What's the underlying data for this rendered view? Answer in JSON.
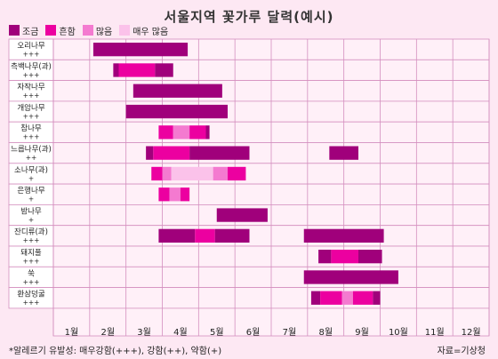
{
  "chart_data": {
    "type": "bar",
    "title": "서울지역 꽃가루 달력(예시)",
    "legend": [
      {
        "label": "조금",
        "color": "#a0007b"
      },
      {
        "label": "흔함",
        "color": "#ec00a0"
      },
      {
        "label": "많음",
        "color": "#f47ad0"
      },
      {
        "label": "매우 많음",
        "color": "#fbc2ea"
      }
    ],
    "months": [
      "1월",
      "2월",
      "3월",
      "4월",
      "5월",
      "6월",
      "7월",
      "8월",
      "9월",
      "10월",
      "11월",
      "12월"
    ],
    "rows": [
      {
        "name": "오리나무",
        "level": "+++",
        "segments": [
          {
            "start": 2.1,
            "end": 4.7,
            "cat": 0
          }
        ]
      },
      {
        "name": "측백나무(과)",
        "level": "+++",
        "segments": [
          {
            "start": 2.65,
            "end": 2.8,
            "cat": 0
          },
          {
            "start": 2.8,
            "end": 3.8,
            "cat": 1
          },
          {
            "start": 3.8,
            "end": 4.3,
            "cat": 0
          }
        ]
      },
      {
        "name": "자작나무",
        "level": "+++",
        "segments": [
          {
            "start": 3.2,
            "end": 5.65,
            "cat": 0
          }
        ]
      },
      {
        "name": "개암나무",
        "level": "+++",
        "segments": [
          {
            "start": 3.0,
            "end": 5.8,
            "cat": 0
          }
        ]
      },
      {
        "name": "참나무",
        "level": "+++",
        "segments": [
          {
            "start": 3.9,
            "end": 4.3,
            "cat": 1
          },
          {
            "start": 4.3,
            "end": 4.75,
            "cat": 2
          },
          {
            "start": 4.75,
            "end": 5.2,
            "cat": 1
          },
          {
            "start": 5.2,
            "end": 5.3,
            "cat": 0
          }
        ]
      },
      {
        "name": "느릅나무(과)",
        "level": "++",
        "segments": [
          {
            "start": 3.55,
            "end": 3.75,
            "cat": 0
          },
          {
            "start": 3.75,
            "end": 4.75,
            "cat": 1
          },
          {
            "start": 4.75,
            "end": 6.4,
            "cat": 0
          },
          {
            "start": 8.6,
            "end": 9.4,
            "cat": 0
          }
        ]
      },
      {
        "name": "소나무(과)",
        "level": "+",
        "segments": [
          {
            "start": 3.7,
            "end": 4.0,
            "cat": 1
          },
          {
            "start": 4.0,
            "end": 4.25,
            "cat": 2
          },
          {
            "start": 4.25,
            "end": 5.4,
            "cat": 3
          },
          {
            "start": 5.4,
            "end": 5.8,
            "cat": 2
          },
          {
            "start": 5.8,
            "end": 6.3,
            "cat": 1
          }
        ]
      },
      {
        "name": "은행나무",
        "level": "+",
        "segments": [
          {
            "start": 3.9,
            "end": 4.2,
            "cat": 1
          },
          {
            "start": 4.2,
            "end": 4.5,
            "cat": 2
          },
          {
            "start": 4.5,
            "end": 4.75,
            "cat": 1
          }
        ]
      },
      {
        "name": "밤나무",
        "level": "+",
        "segments": [
          {
            "start": 5.5,
            "end": 6.9,
            "cat": 0
          }
        ]
      },
      {
        "name": "잔디류(과)",
        "level": "+++",
        "segments": [
          {
            "start": 3.9,
            "end": 4.9,
            "cat": 0
          },
          {
            "start": 4.9,
            "end": 5.45,
            "cat": 1
          },
          {
            "start": 5.45,
            "end": 6.4,
            "cat": 0
          },
          {
            "start": 7.9,
            "end": 10.1,
            "cat": 0
          }
        ]
      },
      {
        "name": "돼지풀",
        "level": "+++",
        "segments": [
          {
            "start": 8.3,
            "end": 8.65,
            "cat": 0
          },
          {
            "start": 8.65,
            "end": 9.4,
            "cat": 1
          },
          {
            "start": 9.4,
            "end": 10.05,
            "cat": 0
          }
        ]
      },
      {
        "name": "쑥",
        "level": "+++",
        "segments": [
          {
            "start": 7.9,
            "end": 10.5,
            "cat": 0
          }
        ]
      },
      {
        "name": "환삼덩굴",
        "level": "+++",
        "segments": [
          {
            "start": 8.1,
            "end": 8.35,
            "cat": 0
          },
          {
            "start": 8.35,
            "end": 8.95,
            "cat": 1
          },
          {
            "start": 8.95,
            "end": 9.25,
            "cat": 2
          },
          {
            "start": 9.25,
            "end": 9.8,
            "cat": 1
          },
          {
            "start": 9.8,
            "end": 10.0,
            "cat": 0
          }
        ]
      }
    ]
  },
  "footnote": "*알레르기 유발성: 매우강함(+++), 강함(++), 약함(+)",
  "source": "자료=기상청"
}
